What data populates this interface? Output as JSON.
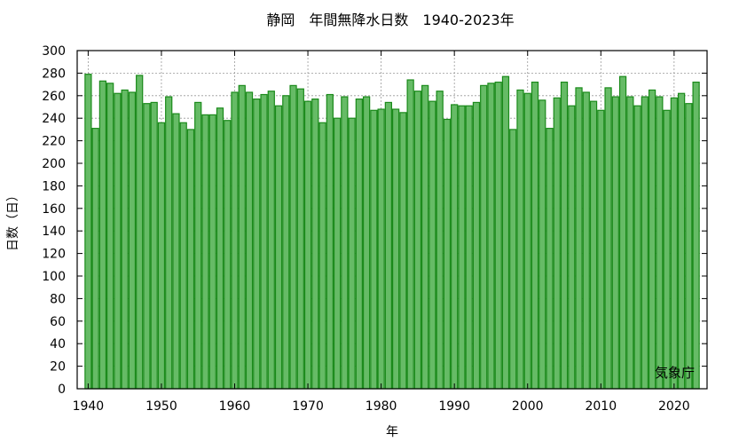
{
  "chart_data": {
    "type": "bar",
    "title": "静岡　年間無降水日数　1940-2023年",
    "xlabel": "年",
    "ylabel": "日数（日）",
    "source": "気象庁",
    "ylim": [
      0,
      300
    ],
    "xlim": [
      1938.5,
      2024.5
    ],
    "y_ticks": [
      0,
      20,
      40,
      60,
      80,
      100,
      120,
      140,
      160,
      180,
      200,
      220,
      240,
      260,
      280,
      300
    ],
    "x_ticks": [
      1940,
      1950,
      1960,
      1970,
      1980,
      1990,
      2000,
      2010,
      2020
    ],
    "grid": true,
    "bar_color": "#66bb66",
    "bar_edge_color": "#1a8a1a",
    "x": [
      1940,
      1941,
      1942,
      1943,
      1944,
      1945,
      1946,
      1947,
      1948,
      1949,
      1950,
      1951,
      1952,
      1953,
      1954,
      1955,
      1956,
      1957,
      1958,
      1959,
      1960,
      1961,
      1962,
      1963,
      1964,
      1965,
      1966,
      1967,
      1968,
      1969,
      1970,
      1971,
      1972,
      1973,
      1974,
      1975,
      1976,
      1977,
      1978,
      1979,
      1980,
      1981,
      1982,
      1983,
      1984,
      1985,
      1986,
      1987,
      1988,
      1989,
      1990,
      1991,
      1992,
      1993,
      1994,
      1995,
      1996,
      1997,
      1998,
      1999,
      2000,
      2001,
      2002,
      2003,
      2004,
      2005,
      2006,
      2007,
      2008,
      2009,
      2010,
      2011,
      2012,
      2013,
      2014,
      2015,
      2016,
      2017,
      2018,
      2019,
      2020,
      2021,
      2022,
      2023
    ],
    "values": [
      279,
      231,
      273,
      271,
      262,
      265,
      263,
      278,
      253,
      254,
      236,
      259,
      244,
      236,
      230,
      254,
      243,
      243,
      249,
      238,
      263,
      269,
      263,
      257,
      261,
      264,
      251,
      260,
      269,
      266,
      255,
      257,
      236,
      261,
      240,
      259,
      240,
      257,
      259,
      247,
      248,
      254,
      248,
      245,
      274,
      264,
      269,
      255,
      264,
      239,
      252,
      251,
      251,
      254,
      269,
      271,
      272,
      277,
      230,
      265,
      262,
      272,
      256,
      231,
      258,
      272,
      251,
      267,
      263,
      255,
      247,
      267,
      259,
      277,
      259,
      251,
      259,
      265,
      259,
      247,
      258,
      262,
      253,
      272
    ]
  }
}
